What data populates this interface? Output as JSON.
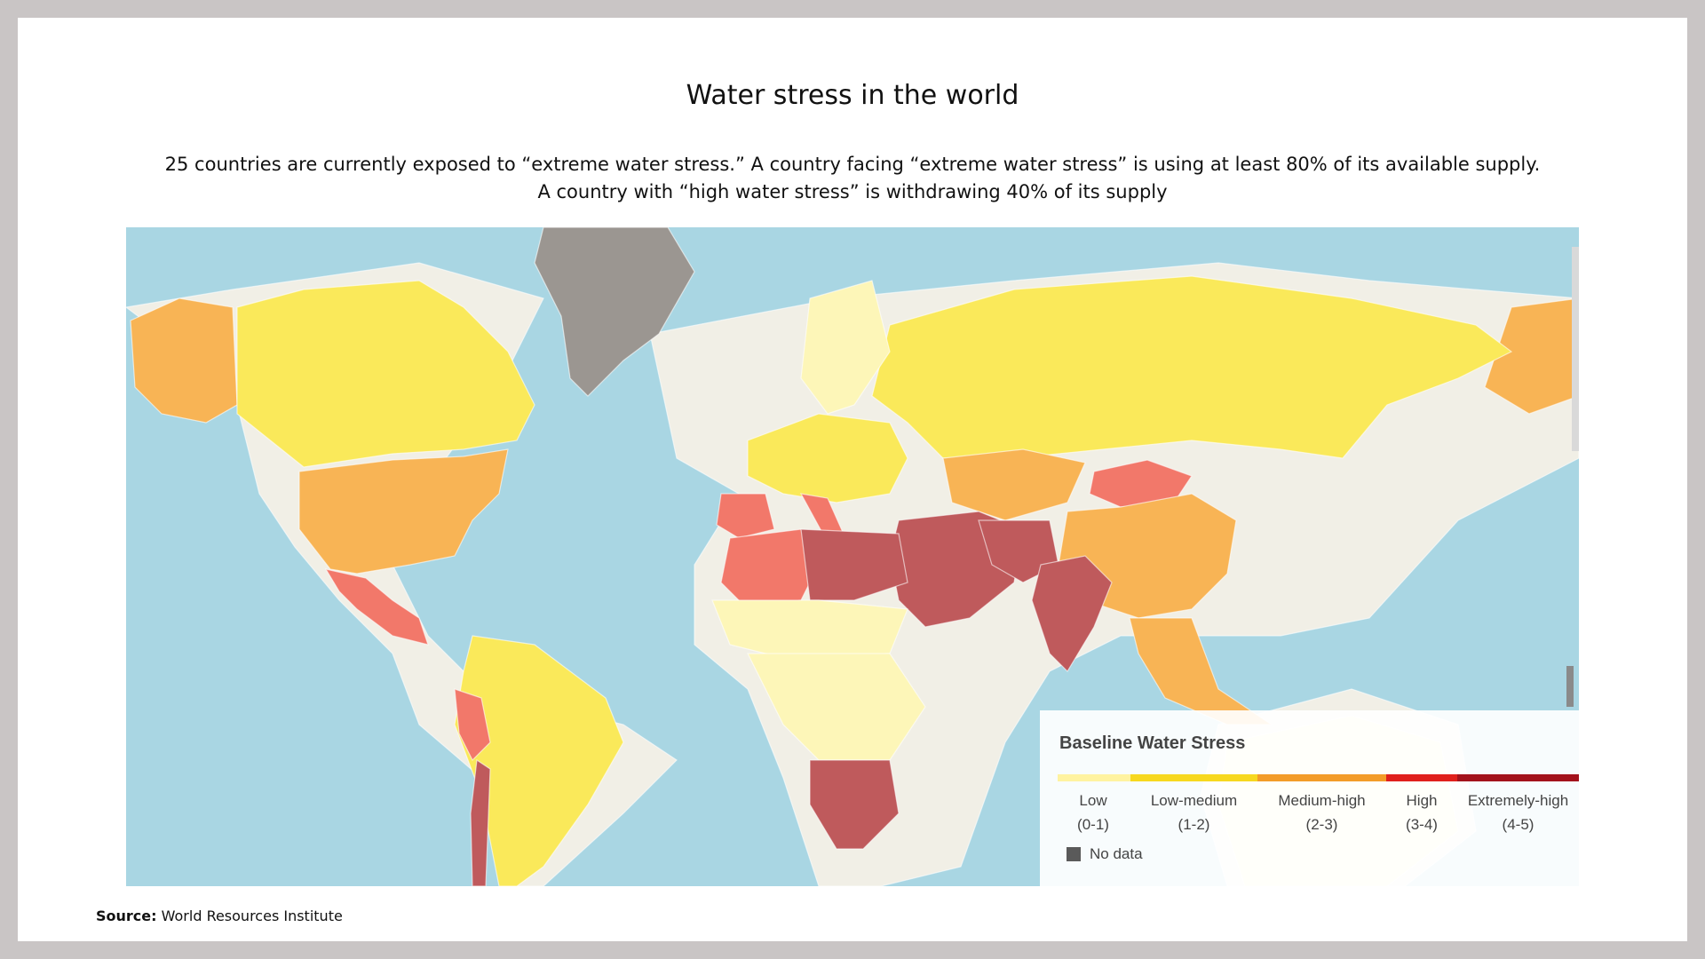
{
  "title": "Water stress in the world",
  "subtitle": {
    "line1": "25 countries are currently exposed to “extreme water stress.” A country facing “extreme water stress” is using at least 80% of its available supply.",
    "line2": "A country with “high water stress” is withdrawing 40% of its supply"
  },
  "legend": {
    "title": "Baseline Water Stress",
    "categories": [
      {
        "label": "Low",
        "range": "(0-1)",
        "color": "#fff3a0"
      },
      {
        "label": "Low-medium",
        "range": "(1-2)",
        "color": "#f7d81f"
      },
      {
        "label": "Medium-high",
        "range": "(2-3)",
        "color": "#f39c28"
      },
      {
        "label": "High",
        "range": "(3-4)",
        "color": "#e0201c"
      },
      {
        "label": "Extremely-high",
        "range": "(4-5)",
        "color": "#a3121c"
      }
    ],
    "no_data_label": "No data",
    "no_data_color": "#5a5a5a"
  },
  "map_colors": {
    "ocean": "#a9d6e3",
    "land_background": "#f1efe6",
    "low": "#fdf6b8",
    "low_medium": "#fae95a",
    "medium_high": "#f8b455",
    "high": "#f2786a",
    "extremely_high": "#bf5a5c",
    "no_data": "#9b9691"
  },
  "source": {
    "label": "Source:",
    "text": "World Resources Institute"
  }
}
